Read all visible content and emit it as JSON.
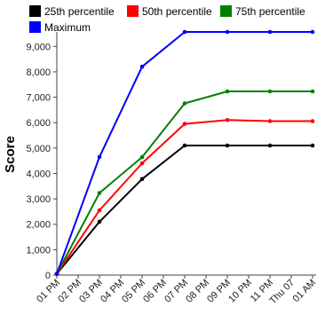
{
  "chart_data": {
    "type": "line",
    "title": "",
    "xlabel": "",
    "ylabel": "Score",
    "categories": [
      "01 PM",
      "02 PM",
      "03 PM",
      "04 PM",
      "05 PM",
      "06 PM",
      "07 PM",
      "08 PM",
      "09 PM",
      "10 PM",
      "11 PM",
      "Thu 07",
      "01 AM"
    ],
    "ylim": [
      0,
      9500
    ],
    "yticks": [
      0,
      1000,
      2000,
      3000,
      4000,
      5000,
      6000,
      7000,
      8000,
      9000
    ],
    "ytick_labels": [
      "0",
      "1,000",
      "2,000",
      "3,000",
      "4,000",
      "5,000",
      "6,000",
      "7,000",
      "8,000",
      "9,000"
    ],
    "grid": false,
    "legend_position": "top",
    "series": [
      {
        "name": "25th percentile",
        "color": "#000000",
        "x": [
          "01 PM",
          "03 PM",
          "05 PM",
          "07 PM",
          "09 PM",
          "11 PM",
          "01 AM"
        ],
        "values": [
          50,
          2100,
          3780,
          5100,
          5100,
          5100,
          5100
        ]
      },
      {
        "name": "50th percentile",
        "color": "#ff0000",
        "x": [
          "01 PM",
          "03 PM",
          "05 PM",
          "07 PM",
          "09 PM",
          "11 PM",
          "01 AM"
        ],
        "values": [
          50,
          2550,
          4400,
          5950,
          6100,
          6060,
          6060
        ]
      },
      {
        "name": "75th percentile",
        "color": "#008000",
        "x": [
          "01 PM",
          "03 PM",
          "05 PM",
          "07 PM",
          "09 PM",
          "11 PM",
          "01 AM"
        ],
        "values": [
          50,
          3230,
          4640,
          6760,
          7230,
          7230,
          7230
        ]
      },
      {
        "name": "Maximum",
        "color": "#0000ff",
        "x": [
          "01 PM",
          "03 PM",
          "05 PM",
          "07 PM",
          "09 PM",
          "11 PM",
          "01 AM"
        ],
        "values": [
          50,
          4650,
          8200,
          9570,
          9570,
          9570,
          9570
        ]
      }
    ]
  }
}
